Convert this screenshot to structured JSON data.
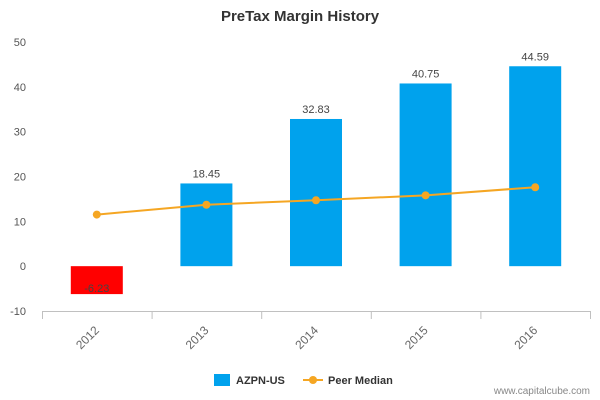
{
  "chart_data": {
    "type": "bar",
    "title": "PreTax Margin History",
    "xlabel": "",
    "ylabel": "",
    "categories": [
      "2012",
      "2013",
      "2014",
      "2015",
      "2016"
    ],
    "ylim": [
      -10,
      50
    ],
    "yticks": [
      -10,
      0,
      10,
      20,
      30,
      40,
      50
    ],
    "grid": false,
    "legend_position": "bottom-center",
    "series": [
      {
        "name": "AZPN-US",
        "type": "bar",
        "values": [
          -6.23,
          18.45,
          32.83,
          40.75,
          44.59
        ],
        "labels": [
          "-6.23",
          "18.45",
          "32.83",
          "40.75",
          "44.59"
        ],
        "color": "#00a2ed",
        "negative_color": "#ff0000"
      },
      {
        "name": "Peer Median",
        "type": "line",
        "values": [
          11.5,
          13.7,
          14.7,
          15.8,
          17.6
        ],
        "color": "#f5a623"
      }
    ],
    "source": "www.capitalcube.com"
  }
}
